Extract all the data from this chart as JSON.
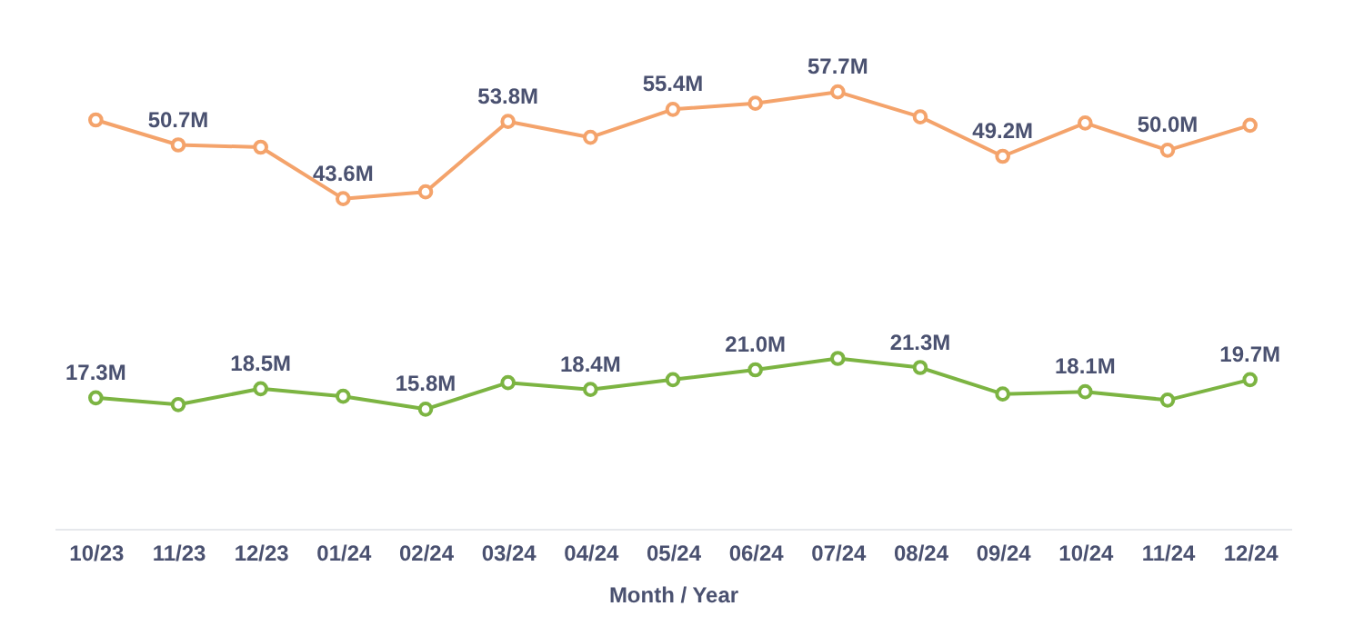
{
  "chart_data": {
    "type": "line",
    "xlabel": "Month / Year",
    "categories": [
      "10/23",
      "11/23",
      "12/23",
      "01/24",
      "02/24",
      "03/24",
      "04/24",
      "05/24",
      "06/24",
      "07/24",
      "08/24",
      "09/24",
      "10/24",
      "11/24",
      "12/24"
    ],
    "series": [
      {
        "color": "#f4a36b",
        "values": [
          54.0,
          50.7,
          50.4,
          43.6,
          44.5,
          53.8,
          51.7,
          55.4,
          56.2,
          57.7,
          54.4,
          49.2,
          53.6,
          50.0,
          53.3
        ],
        "value_labels": [
          null,
          "50.7M",
          null,
          "43.6M",
          null,
          "53.8M",
          null,
          "55.4M",
          null,
          "57.7M",
          null,
          "49.2M",
          null,
          "50.0M",
          null
        ]
      },
      {
        "color": "#7cb442",
        "values": [
          17.3,
          16.4,
          18.5,
          17.5,
          15.8,
          19.3,
          18.4,
          19.7,
          21.0,
          22.5,
          21.3,
          17.8,
          18.1,
          17.0,
          19.7
        ],
        "value_labels": [
          "17.3M",
          null,
          "18.5M",
          null,
          "15.8M",
          null,
          "18.4M",
          null,
          "21.0M",
          null,
          "21.3M",
          null,
          "18.1M",
          null,
          "19.7M"
        ]
      }
    ],
    "tick_labels": "x",
    "grid": false,
    "marker": "circle",
    "line_style": "solid"
  }
}
